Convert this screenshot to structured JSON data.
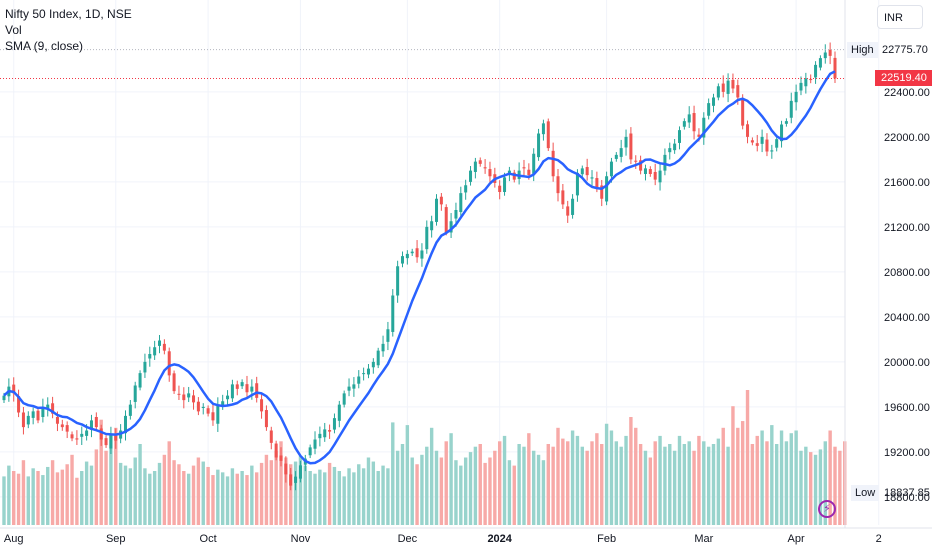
{
  "header": {
    "symbol_line": "Nifty 50 Index, 1D, NSE",
    "volume_label": "Vol",
    "indicator_label": "SMA (9, close)"
  },
  "currency_button": "INR",
  "markers": {
    "high_label": "High",
    "high_value": "22775.70",
    "last_value": "22519.40",
    "low_label": "Low",
    "low_value": "18837.85"
  },
  "colors": {
    "up": "#26a69a",
    "down": "#ef5350",
    "sma": "#2962ff",
    "grid": "#f0f3fa",
    "text": "#131722",
    "axis_text": "#131722",
    "volume_up": "#98d3cc",
    "volume_down": "#f7a9a7",
    "last_price_bg": "#f23645"
  },
  "icons": {
    "event_marker": "lightning-icon"
  },
  "chart_data": {
    "type": "candlestick",
    "title": "Nifty 50 Index, 1D, NSE",
    "ylim": [
      18550,
      22950
    ],
    "y_ticks": [
      18800,
      19200,
      19600,
      20000,
      20400,
      20800,
      21200,
      21600,
      22000,
      22400
    ],
    "y_tick_labels": [
      "18800.00",
      "19200.00",
      "19600.00",
      "20000.00",
      "20400.00",
      "20800.00",
      "21200.00",
      "21600.00",
      "22000.00",
      "22400.00"
    ],
    "x_labels": [
      {
        "label": "Aug",
        "index": 2
      },
      {
        "label": "Sep",
        "index": 23
      },
      {
        "label": "Oct",
        "index": 42
      },
      {
        "label": "Nov",
        "index": 61
      },
      {
        "label": "Dec",
        "index": 83
      },
      {
        "label": "2024",
        "index": 102
      },
      {
        "label": "Feb",
        "index": 124
      },
      {
        "label": "Mar",
        "index": 144
      },
      {
        "label": "Apr",
        "index": 163
      },
      {
        "label": "2",
        "index": 180
      }
    ],
    "legend": "top-left",
    "grid": true,
    "series": [
      {
        "name": "Nifty 50 Index",
        "kind": "ohlc"
      },
      {
        "name": "Vol",
        "kind": "volume"
      },
      {
        "name": "SMA (9, close)",
        "kind": "line",
        "period": 9
      }
    ],
    "closes": [
      19700,
      19780,
      19720,
      19550,
      19420,
      19520,
      19560,
      19480,
      19600,
      19620,
      19540,
      19450,
      19420,
      19380,
      19320,
      19310,
      19360,
      19390,
      19480,
      19420,
      19310,
      19260,
      19350,
      19300,
      19390,
      19520,
      19620,
      19790,
      19900,
      20000,
      20070,
      20130,
      20190,
      20100,
      19880,
      19740,
      19710,
      19660,
      19720,
      19640,
      19560,
      19600,
      19540,
      19480,
      19620,
      19650,
      19700,
      19800,
      19760,
      19820,
      19730,
      19780,
      19680,
      19560,
      19420,
      19280,
      19150,
      19120,
      19000,
      18900,
      18980,
      19080,
      19140,
      19240,
      19310,
      19360,
      19400,
      19380,
      19500,
      19620,
      19720,
      19780,
      19800,
      19870,
      19900,
      19940,
      20000,
      20100,
      20160,
      20290,
      20590,
      20850,
      20940,
      20960,
      20980,
      20930,
      20990,
      21200,
      21250,
      21450,
      21400,
      21150,
      21250,
      21350,
      21500,
      21570,
      21700,
      21780,
      21760,
      21720,
      21650,
      21590,
      21510,
      21640,
      21700,
      21620,
      21700,
      21720,
      21660,
      21850,
      22030,
      22120,
      21900,
      21650,
      21500,
      21400,
      21300,
      21450,
      21680,
      21720,
      21660,
      21640,
      21550,
      21450,
      21650,
      21780,
      21840,
      21900,
      22000,
      21800,
      21780,
      21700,
      21720,
      21670,
      21620,
      21700,
      21840,
      21900,
      21940,
      22060,
      22140,
      22200,
      22050,
      22000,
      22170,
      22300,
      22350,
      22450,
      22400,
      22500,
      22430,
      22350,
      22100,
      22000,
      21950,
      21920,
      22000,
      21870,
      21880,
      21980,
      22110,
      22140,
      22320,
      22400,
      22480,
      22520,
      22510,
      22640,
      22700,
      22750,
      22720,
      22520
    ],
    "volumes": [
      0.36,
      0.44,
      0.4,
      0.38,
      0.48,
      0.36,
      0.42,
      0.4,
      0.37,
      0.43,
      0.48,
      0.39,
      0.41,
      0.45,
      0.52,
      0.35,
      0.4,
      0.47,
      0.44,
      0.56,
      0.78,
      0.55,
      0.68,
      0.72,
      0.46,
      0.44,
      0.42,
      0.5,
      0.6,
      0.42,
      0.38,
      0.4,
      0.46,
      0.52,
      0.62,
      0.48,
      0.45,
      0.4,
      0.38,
      0.44,
      0.5,
      0.47,
      0.43,
      0.37,
      0.41,
      0.39,
      0.36,
      0.42,
      0.38,
      0.4,
      0.37,
      0.44,
      0.39,
      0.46,
      0.52,
      0.48,
      0.55,
      0.62,
      0.5,
      0.45,
      0.47,
      0.51,
      0.44,
      0.4,
      0.38,
      0.41,
      0.39,
      0.46,
      0.43,
      0.4,
      0.36,
      0.42,
      0.39,
      0.45,
      0.42,
      0.5,
      0.47,
      0.4,
      0.44,
      0.42,
      0.76,
      0.55,
      0.6,
      0.74,
      0.5,
      0.45,
      0.52,
      0.58,
      0.72,
      0.55,
      0.5,
      0.62,
      0.68,
      0.48,
      0.44,
      0.5,
      0.54,
      0.58,
      0.6,
      0.46,
      0.5,
      0.55,
      0.62,
      0.66,
      0.48,
      0.44,
      0.6,
      0.58,
      0.68,
      0.55,
      0.52,
      0.48,
      0.6,
      0.58,
      0.72,
      0.64,
      0.62,
      0.7,
      0.66,
      0.58,
      0.55,
      0.62,
      0.68,
      0.6,
      0.75,
      0.7,
      0.62,
      0.58,
      0.66,
      0.8,
      0.72,
      0.6,
      0.55,
      0.5,
      0.62,
      0.66,
      0.58,
      0.6,
      0.55,
      0.66,
      0.6,
      0.62,
      0.55,
      0.66,
      0.62,
      0.58,
      0.6,
      0.64,
      0.72,
      0.58,
      0.88,
      0.72,
      0.77,
      1.0,
      0.6,
      0.66,
      0.7,
      0.62,
      0.74,
      0.6,
      0.7,
      0.62,
      0.68,
      0.7,
      0.55,
      0.58,
      0.54,
      0.52,
      0.56,
      0.62,
      0.7,
      0.58,
      0.55,
      0.62
    ]
  }
}
